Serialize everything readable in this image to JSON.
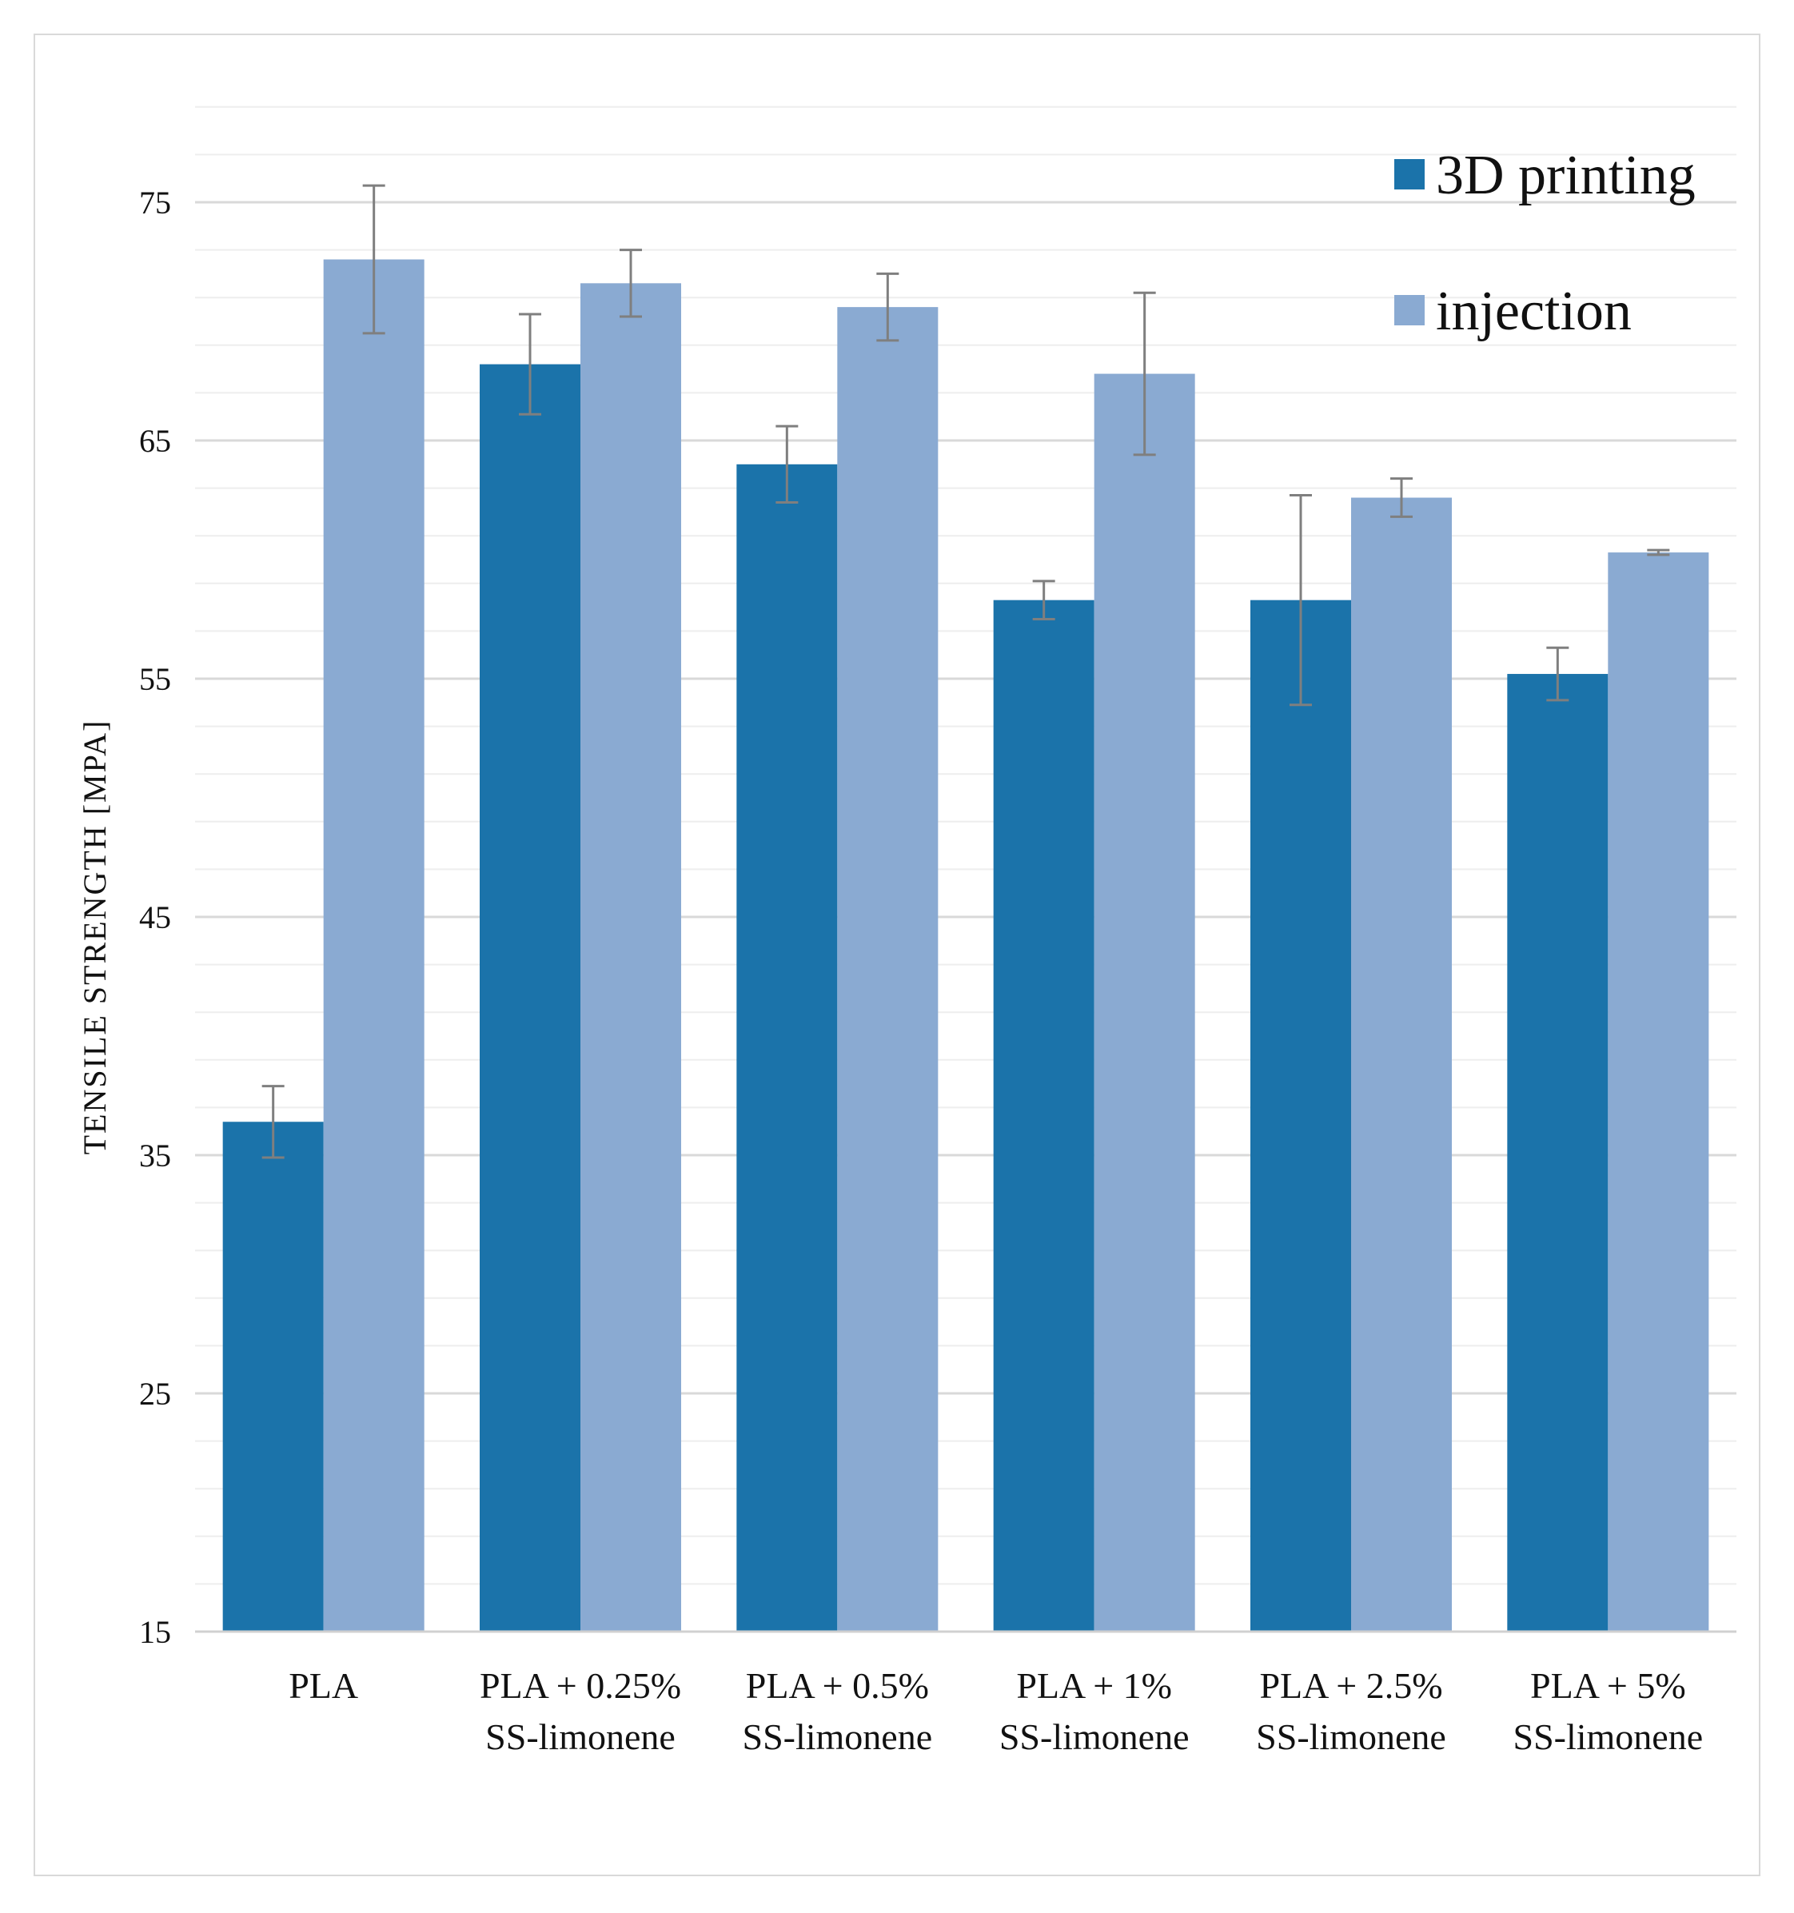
{
  "chart_data": {
    "type": "bar",
    "title": "",
    "xlabel": "",
    "ylabel": "TENSILE  STRENGTH  [MPA]",
    "ylim": [
      15,
      80
    ],
    "yticks": [
      15,
      25,
      35,
      45,
      55,
      65,
      75
    ],
    "minor_grid_step": 2,
    "grid": true,
    "legend_position": "top-right",
    "categories": [
      [
        "PLA"
      ],
      [
        "PLA + 0.25%",
        "SS-limonene"
      ],
      [
        "PLA + 0.5%",
        "SS-limonene"
      ],
      [
        "PLA + 1%",
        "SS-limonene"
      ],
      [
        "PLA + 2.5%",
        "SS-limonene"
      ],
      [
        "PLA + 5%",
        "SS-limonene"
      ]
    ],
    "series": [
      {
        "name": "3D printing",
        "color": "#1b73aa",
        "values": [
          36.4,
          68.2,
          64.0,
          58.3,
          58.3,
          55.2
        ],
        "errors": [
          1.5,
          2.1,
          1.6,
          0.8,
          4.4,
          1.1
        ]
      },
      {
        "name": "injection",
        "color": "#8aaad2",
        "values": [
          72.6,
          71.6,
          70.6,
          67.8,
          62.6,
          60.3
        ],
        "errors": [
          3.1,
          1.4,
          1.4,
          3.4,
          0.8,
          0.1
        ]
      }
    ],
    "error_bar_color": "#7f7f7f"
  }
}
